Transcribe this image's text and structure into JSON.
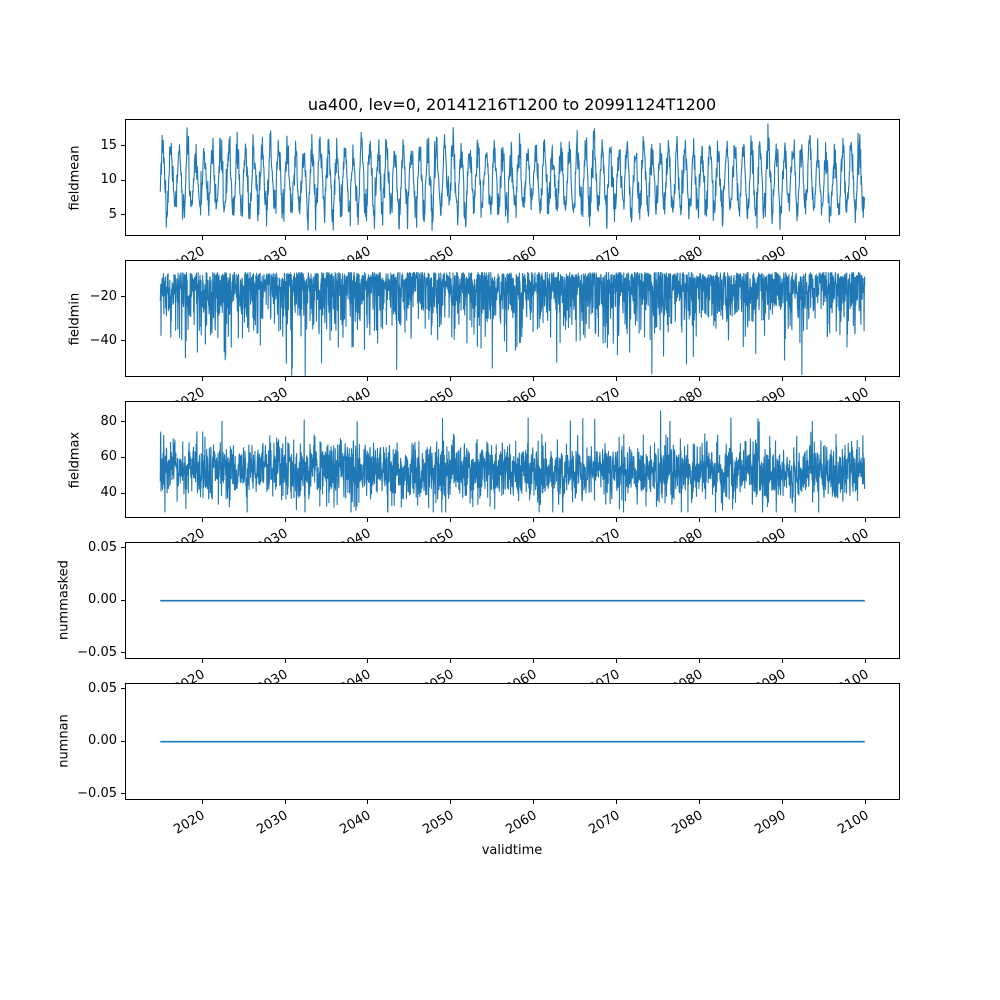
{
  "chart_data": {
    "type": "line",
    "title": "ua400, lev=0, 20141216T1200 to 20991124T1200",
    "xlabel": "validtime",
    "x_axis": {
      "range": [
        2010.71,
        2104.14
      ],
      "data_range": [
        2014.96,
        2099.9
      ],
      "tick_values": [
        2020,
        2030,
        2040,
        2050,
        2060,
        2070,
        2080,
        2090,
        2100
      ],
      "tick_labels": [
        "2020",
        "2030",
        "2040",
        "2050",
        "2060",
        "2070",
        "2080",
        "2090",
        "2100"
      ],
      "tick_rotation_deg": 30
    },
    "line_color": "#1f77b4",
    "grid": false,
    "legend": "none",
    "subplots": [
      {
        "ylabel": "fieldmean",
        "ylim": [
          1.9,
          18.9
        ],
        "ytick_values": [
          5,
          10,
          15
        ],
        "ytick_labels": [
          "5",
          "10",
          "15"
        ],
        "series": {
          "kind": "seasonal_noise",
          "mean": 10.2,
          "seasonal_amplitude": 4.3,
          "amplitude_jitter": 1.0,
          "noise_sd": 1.1,
          "period_years": 1,
          "observed_min": 2.8,
          "observed_max": 18.2,
          "points_per_year": 22,
          "seed": 7
        }
      },
      {
        "ylabel": "fieldmin",
        "ylim": [
          -56.4,
          -3.4
        ],
        "ytick_values": [
          -40,
          -20
        ],
        "ytick_labels": [
          "−40",
          "−20"
        ],
        "series": {
          "kind": "one_sided_noise",
          "base": -9,
          "scale": 11,
          "exponent": 1.2,
          "observed_min": -55.5,
          "observed_max": -6.8,
          "points_per_year": 34,
          "seed": 11
        }
      },
      {
        "ylabel": "fieldmax",
        "ylim": [
          25.9,
          91.7
        ],
        "ytick_values": [
          40,
          60,
          80
        ],
        "ytick_labels": [
          "40",
          "60",
          "80"
        ],
        "series": {
          "kind": "gaussian_noise",
          "mean": 52.5,
          "sd": 8.5,
          "observed_min": 29.5,
          "observed_max": 88,
          "points_per_year": 34,
          "seed": 13
        }
      },
      {
        "ylabel": "nummasked",
        "ylim": [
          -0.0559,
          0.0559
        ],
        "ytick_values": [
          -0.05,
          0,
          0.05
        ],
        "ytick_labels": [
          "−0.05",
          "0.00",
          "0.05"
        ],
        "series": {
          "kind": "constant",
          "value": 0
        }
      },
      {
        "ylabel": "numnan",
        "ylim": [
          -0.0559,
          0.0559
        ],
        "ytick_values": [
          -0.05,
          0,
          0.05
        ],
        "ytick_labels": [
          "−0.05",
          "0.00",
          "0.05"
        ],
        "series": {
          "kind": "constant",
          "value": 0
        }
      }
    ]
  }
}
